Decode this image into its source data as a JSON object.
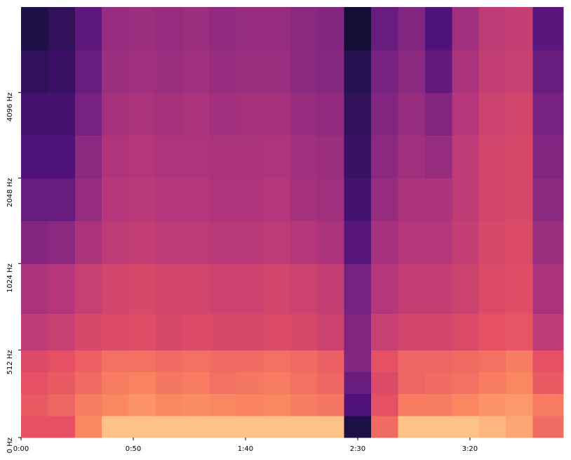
{
  "chart_data": {
    "type": "heatmap",
    "x": [
      0,
      12,
      24,
      36,
      48,
      60,
      72,
      84,
      96,
      108,
      120,
      132,
      144,
      156,
      168,
      180,
      192,
      204,
      216,
      228,
      241.6
    ],
    "y": [
      0,
      128,
      256,
      384,
      512,
      724,
      1024,
      1448,
      2048,
      2896,
      4096,
      5793,
      8192
    ],
    "values": [
      [
        -30,
        -30,
        -20,
        -10,
        -10,
        -10,
        -10,
        -10,
        -10,
        -10,
        -10,
        -10,
        -70,
        -25,
        -10,
        -10,
        -10,
        -12,
        -15,
        -25
      ],
      [
        -28,
        -26,
        -22,
        -20,
        -18,
        -20,
        -19,
        -20,
        -21,
        -20,
        -22,
        -23,
        -60,
        -30,
        -22,
        -22,
        -20,
        -18,
        -17,
        -22
      ],
      [
        -30,
        -28,
        -25,
        -22,
        -21,
        -23,
        -22,
        -24,
        -23,
        -22,
        -24,
        -26,
        -55,
        -32,
        -26,
        -25,
        -24,
        -22,
        -20,
        -28
      ],
      [
        -32,
        -30,
        -27,
        -24,
        -24,
        -25,
        -24,
        -25,
        -25,
        -24,
        -25,
        -27,
        -50,
        -30,
        -26,
        -26,
        -25,
        -24,
        -22,
        -30
      ],
      [
        -38,
        -36,
        -33,
        -32,
        -31,
        -33,
        -32,
        -33,
        -33,
        -32,
        -33,
        -35,
        -50,
        -36,
        -34,
        -34,
        -32,
        -30,
        -29,
        -38
      ],
      [
        -42,
        -40,
        -36,
        -34,
        -33,
        -34,
        -34,
        -35,
        -35,
        -34,
        -35,
        -37,
        -52,
        -40,
        -37,
        -37,
        -35,
        -32,
        -31,
        -42
      ],
      [
        -50,
        -48,
        -42,
        -38,
        -37,
        -38,
        -38,
        -39,
        -39,
        -38,
        -40,
        -42,
        -58,
        -43,
        -40,
        -40,
        -37,
        -33,
        -32,
        -45
      ],
      [
        -55,
        -55,
        -46,
        -40,
        -39,
        -40,
        -40,
        -41,
        -41,
        -40,
        -43,
        -44,
        -62,
        -46,
        -42,
        -42,
        -38,
        -34,
        -33,
        -48
      ],
      [
        -60,
        -60,
        -48,
        -41,
        -40,
        -41,
        -41,
        -42,
        -42,
        -41,
        -44,
        -45,
        -64,
        -48,
        -44,
        -46,
        -38,
        -34,
        -33,
        -50
      ],
      [
        -62,
        -62,
        -52,
        -43,
        -42,
        -43,
        -42,
        -44,
        -43,
        -43,
        -46,
        -47,
        -66,
        -50,
        -46,
        -50,
        -40,
        -35,
        -34,
        -52
      ],
      [
        -66,
        -64,
        -55,
        -45,
        -44,
        -45,
        -44,
        -46,
        -45,
        -45,
        -48,
        -49,
        -68,
        -52,
        -48,
        -56,
        -42,
        -37,
        -36,
        -55
      ],
      [
        -70,
        -66,
        -57,
        -46,
        -45,
        -46,
        -45,
        -47,
        -46,
        -46,
        -48,
        -50,
        -72,
        -55,
        -50,
        -60,
        -44,
        -38,
        -37,
        -58
      ]
    ],
    "zlim": [
      -80,
      0
    ],
    "colormap": "magma",
    "xlim": [
      0,
      241.6
    ],
    "xticks": [
      {
        "value": 0,
        "label": "0:00"
      },
      {
        "value": 50,
        "label": "0:50"
      },
      {
        "value": 100,
        "label": "1:40"
      },
      {
        "value": 150,
        "label": "2:30"
      },
      {
        "value": 200,
        "label": "3:20"
      }
    ],
    "ylim": [
      0,
      8192
    ],
    "yscale": "symlog",
    "linthresh": 1000,
    "base": 2,
    "yticks": [
      {
        "value": 0,
        "label": "0 Hz"
      },
      {
        "value": 512,
        "label": "512 Hz"
      },
      {
        "value": 1024,
        "label": "1024 Hz"
      },
      {
        "value": 2048,
        "label": "2048 Hz"
      },
      {
        "value": 4096,
        "label": "4096 Hz"
      }
    ]
  }
}
